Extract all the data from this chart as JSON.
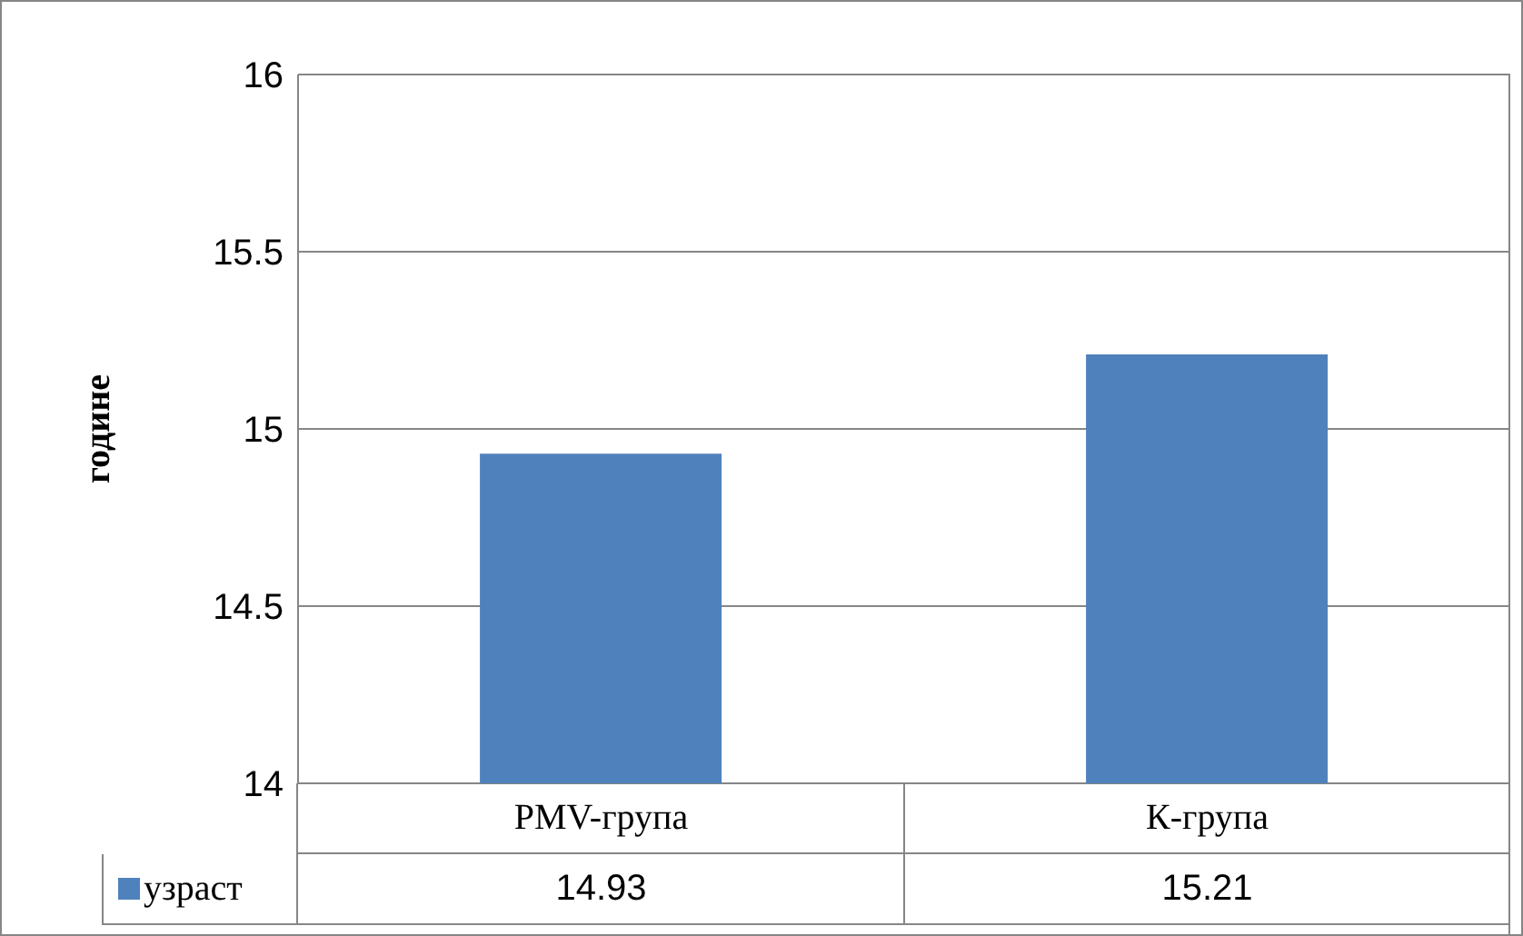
{
  "chart_data": {
    "type": "bar",
    "ylabel": "године",
    "categories": [
      "PMV-група",
      "К-група"
    ],
    "series": [
      {
        "name": "узраст",
        "color": "#4f81bd",
        "values": [
          14.93,
          15.21
        ]
      }
    ],
    "ylim": [
      14,
      16
    ],
    "yticks": [
      14,
      14.5,
      15,
      15.5,
      16
    ],
    "grid": "y",
    "data_labels": true,
    "legend": "bottom"
  }
}
